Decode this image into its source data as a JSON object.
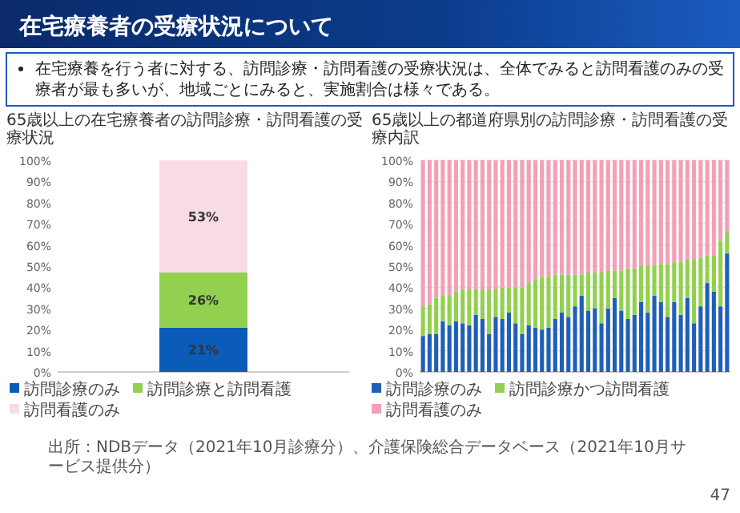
{
  "chart_data": [
    {
      "type": "other",
      "title": "在宅療養者の受療状況について",
      "annotations": [
        "在宅療養を行う者に対する、訪問診療・訪問看護の受療状況は、全体でみると訪問看護のみの受療者が最も多いが、地域ごとにみると、実施割合は様々である。"
      ]
    },
    {
      "type": "bar",
      "title": "65歳以上の在宅療養者の訪問診療・訪問看護の受療状況",
      "stacked": true,
      "categories": [
        null
      ],
      "series": [
        {
          "name": "訪問診療のみ",
          "color": "#0b5cb8",
          "values": [
            21
          ],
          "value_labels": [
            "21%"
          ]
        },
        {
          "name": "訪問診療と訪問看護",
          "color": "#92d050",
          "values": [
            26
          ],
          "value_labels": [
            "26%"
          ]
        },
        {
          "name": "訪問看護のみ",
          "color": "#f9dbe3",
          "values": [
            53
          ],
          "value_labels": [
            "53%"
          ]
        }
      ],
      "ylim": [
        0,
        100
      ],
      "yticks": [
        {
          "value": 0,
          "label": "0%"
        },
        {
          "value": 10,
          "label": "10%"
        },
        {
          "value": 20,
          "label": "20%"
        },
        {
          "value": 30,
          "label": "30%"
        },
        {
          "value": 40,
          "label": "40%"
        },
        {
          "value": 50,
          "label": "50%"
        },
        {
          "value": 60,
          "label": "60%"
        },
        {
          "value": 70,
          "label": "70%"
        },
        {
          "value": 80,
          "label": "80%"
        },
        {
          "value": 90,
          "label": "90%"
        },
        {
          "value": 100,
          "label": "100%"
        }
      ],
      "legend": "bottom"
    },
    {
      "type": "bar",
      "title": "65歳以上の都道府県別の訪問診療・訪問看護の受療内訳",
      "stacked": true,
      "categories": [
        null,
        null,
        null,
        null,
        null,
        null,
        null,
        null,
        null,
        null,
        null,
        null,
        null,
        null,
        null,
        null,
        null,
        null,
        null,
        null,
        null,
        null,
        null,
        null,
        null,
        null,
        null,
        null,
        null,
        null,
        null,
        null,
        null,
        null,
        null,
        null,
        null,
        null,
        null,
        null,
        null,
        null,
        null,
        null,
        null,
        null,
        null
      ],
      "series": [
        {
          "name": "訪問診療のみ",
          "color": "#1f5fb8",
          "values": [
            17,
            18,
            18,
            24,
            22,
            24,
            23,
            22,
            27,
            25,
            18,
            26,
            25,
            28,
            23,
            18,
            22,
            21,
            20,
            21,
            25,
            28,
            26,
            31,
            36,
            29,
            30,
            23,
            30,
            35,
            29,
            25,
            27,
            33,
            28,
            36,
            33,
            26,
            33,
            27,
            35,
            23,
            31,
            42,
            38,
            31,
            56
          ]
        },
        {
          "name": "訪問診療かつ訪問看護",
          "color": "#92d050",
          "values": [
            14,
            14,
            17,
            12,
            14,
            14,
            16,
            17,
            12,
            14,
            21,
            13,
            15,
            12,
            17,
            22,
            20,
            23,
            25,
            24,
            21,
            18,
            20,
            15,
            10,
            18,
            17,
            24,
            18,
            13,
            19,
            24,
            22,
            17,
            22,
            14,
            18,
            25,
            19,
            25,
            18,
            30,
            23,
            13,
            17,
            31,
            10
          ]
        },
        {
          "name": "訪問看護のみ",
          "color": "#f2a0b6",
          "values": [
            69,
            68,
            65,
            64,
            64,
            62,
            61,
            61,
            61,
            61,
            61,
            61,
            60,
            60,
            60,
            60,
            58,
            56,
            55,
            55,
            54,
            54,
            54,
            54,
            54,
            53,
            53,
            53,
            52,
            52,
            52,
            51,
            51,
            50,
            50,
            50,
            49,
            49,
            48,
            48,
            47,
            47,
            46,
            45,
            45,
            38,
            34
          ]
        }
      ],
      "ylim": [
        0,
        100
      ],
      "yticks": [
        {
          "value": 0,
          "label": "0%"
        },
        {
          "value": 10,
          "label": "10%"
        },
        {
          "value": 20,
          "label": "20%"
        },
        {
          "value": 30,
          "label": "30%"
        },
        {
          "value": 40,
          "label": "40%"
        },
        {
          "value": 50,
          "label": "50%"
        },
        {
          "value": 60,
          "label": "60%"
        },
        {
          "value": 70,
          "label": "70%"
        },
        {
          "value": 80,
          "label": "80%"
        },
        {
          "value": 90,
          "label": "90%"
        },
        {
          "value": 100,
          "label": "100%"
        }
      ],
      "grid": "y",
      "legend": "bottom",
      "annotations": [
        "出所：NDBデータ（2021年10月診療分）、介護保険総合データベース（2021年10月サービス提供分）",
        "47"
      ]
    }
  ]
}
